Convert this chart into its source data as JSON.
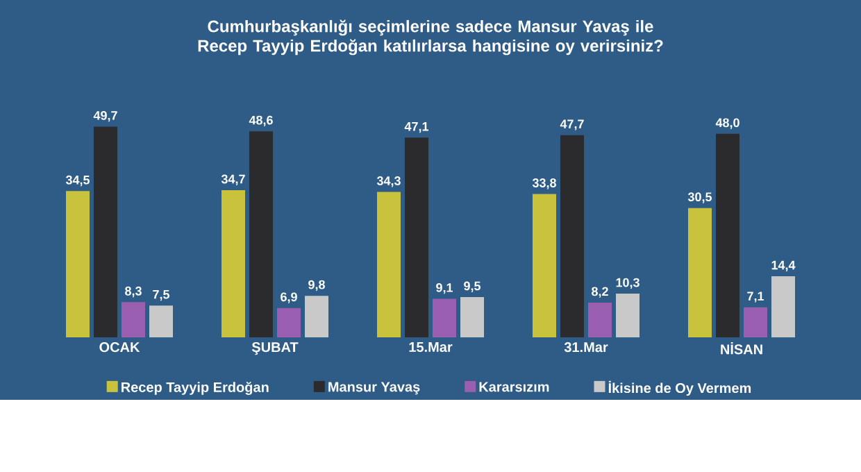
{
  "chart_data": {
    "type": "bar",
    "title": "Cumhurbaşkanlığı seçimlerine sadece Mansur Yavaş ile Recep Tayyip Erdoğan katılırlarsa hangisine oy verirsiniz?",
    "categories": [
      "OCAK",
      "ŞUBAT",
      "15.Mar",
      "31.Mar",
      "NİSAN"
    ],
    "series": [
      {
        "name": "Recep Tayyip Erdoğan",
        "color": "#c9c23c",
        "values": [
          34.5,
          34.7,
          34.3,
          33.8,
          30.5
        ],
        "value_labels": [
          "34,5",
          "34,7",
          "34,3",
          "33,8",
          "30,5"
        ]
      },
      {
        "name": "Mansur Yavaş",
        "color": "#2b2b2d",
        "values": [
          49.7,
          48.6,
          47.1,
          47.7,
          48.0
        ],
        "value_labels": [
          "49,7",
          "48,6",
          "47,1",
          "47,7",
          "48,0"
        ]
      },
      {
        "name": "Kararsızım",
        "color": "#9a5fb0",
        "values": [
          8.3,
          6.9,
          9.1,
          8.2,
          7.1
        ],
        "value_labels": [
          "8,3",
          "6,9",
          "9,1",
          "8,2",
          "7,1"
        ]
      },
      {
        "name": "İkisine de Oy Vermem",
        "color": "#c9c9c9",
        "values": [
          7.5,
          9.8,
          9.5,
          10.3,
          14.4
        ],
        "value_labels": [
          "7,5",
          "9,8",
          "9,5",
          "10,3",
          "14,4"
        ]
      }
    ],
    "legend": "bottom"
  }
}
